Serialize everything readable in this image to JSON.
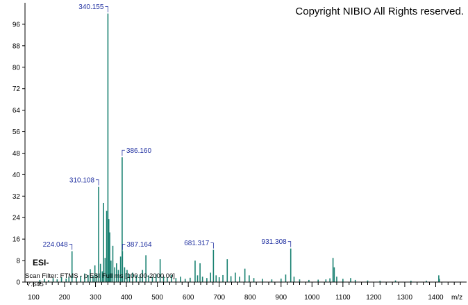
{
  "header": {
    "copyright": "Copyright NIBIO All Rights reserved."
  },
  "annotations": {
    "ionization": "ESI-",
    "scan_filter": "Scan Filter: FTMS - p ESI Full ms [100.00-2000.00]",
    "intensity_level": "7.645"
  },
  "colors": {
    "peak": "#1a8272",
    "label": "#1f2fa0",
    "axis": "#000000"
  },
  "chart_data": {
    "type": "bar",
    "xlabel": "m/z",
    "ylabel": "",
    "xlim": [
      72,
      1500
    ],
    "ylim": [
      0,
      104
    ],
    "x_ticks": [
      100,
      200,
      300,
      400,
      500,
      600,
      700,
      800,
      900,
      1000,
      1100,
      1200,
      1300,
      1400
    ],
    "y_ticks": [
      0,
      8,
      16,
      24,
      32,
      40,
      48,
      56,
      64,
      72,
      80,
      88,
      96
    ],
    "peaks": [
      {
        "mz": 120,
        "intensity": 0.8
      },
      {
        "mz": 135,
        "intensity": 1.2
      },
      {
        "mz": 148,
        "intensity": 0.7
      },
      {
        "mz": 163,
        "intensity": 1.5
      },
      {
        "mz": 176,
        "intensity": 1.0
      },
      {
        "mz": 190,
        "intensity": 1.8
      },
      {
        "mz": 205,
        "intensity": 1.3
      },
      {
        "mz": 214,
        "intensity": 2.0
      },
      {
        "mz": 224.048,
        "intensity": 11.5
      },
      {
        "mz": 238,
        "intensity": 1.6
      },
      {
        "mz": 252,
        "intensity": 2.2
      },
      {
        "mz": 265,
        "intensity": 3.2
      },
      {
        "mz": 276,
        "intensity": 2.6
      },
      {
        "mz": 283,
        "intensity": 4.8
      },
      {
        "mz": 292,
        "intensity": 2.4
      },
      {
        "mz": 298,
        "intensity": 6.2
      },
      {
        "mz": 304,
        "intensity": 3.0
      },
      {
        "mz": 310.108,
        "intensity": 35.5
      },
      {
        "mz": 316,
        "intensity": 6.8
      },
      {
        "mz": 322,
        "intensity": 4.0
      },
      {
        "mz": 326,
        "intensity": 29.5
      },
      {
        "mz": 331,
        "intensity": 9.0
      },
      {
        "mz": 336,
        "intensity": 26.5
      },
      {
        "mz": 340.155,
        "intensity": 100
      },
      {
        "mz": 343,
        "intensity": 23.5
      },
      {
        "mz": 346,
        "intensity": 18.5
      },
      {
        "mz": 350,
        "intensity": 8.0
      },
      {
        "mz": 356,
        "intensity": 13.5
      },
      {
        "mz": 362,
        "intensity": 5.5
      },
      {
        "mz": 368,
        "intensity": 7.0
      },
      {
        "mz": 374,
        "intensity": 4.5
      },
      {
        "mz": 381,
        "intensity": 9.5
      },
      {
        "mz": 386.16,
        "intensity": 46.5
      },
      {
        "mz": 387.164,
        "intensity": 11.5
      },
      {
        "mz": 394,
        "intensity": 5.5
      },
      {
        "mz": 402,
        "intensity": 4.5
      },
      {
        "mz": 410,
        "intensity": 3.0
      },
      {
        "mz": 420,
        "intensity": 3.5
      },
      {
        "mz": 432,
        "intensity": 2.5
      },
      {
        "mz": 444,
        "intensity": 2.8
      },
      {
        "mz": 452,
        "intensity": 4.5
      },
      {
        "mz": 463,
        "intensity": 10.0
      },
      {
        "mz": 472,
        "intensity": 2.5
      },
      {
        "mz": 484,
        "intensity": 2.0
      },
      {
        "mz": 496,
        "intensity": 3.0
      },
      {
        "mz": 509,
        "intensity": 8.5
      },
      {
        "mz": 520,
        "intensity": 2.2
      },
      {
        "mz": 532,
        "intensity": 1.8
      },
      {
        "mz": 546,
        "intensity": 2.6
      },
      {
        "mz": 560,
        "intensity": 1.5
      },
      {
        "mz": 575,
        "intensity": 2.0
      },
      {
        "mz": 590,
        "intensity": 1.2
      },
      {
        "mz": 606,
        "intensity": 1.6
      },
      {
        "mz": 622,
        "intensity": 8.0
      },
      {
        "mz": 630,
        "intensity": 2.5
      },
      {
        "mz": 638,
        "intensity": 7.0
      },
      {
        "mz": 646,
        "intensity": 2.0
      },
      {
        "mz": 660,
        "intensity": 1.5
      },
      {
        "mz": 672,
        "intensity": 3.5
      },
      {
        "mz": 681.317,
        "intensity": 12.0
      },
      {
        "mz": 690,
        "intensity": 2.5
      },
      {
        "mz": 700,
        "intensity": 1.8
      },
      {
        "mz": 712,
        "intensity": 2.6
      },
      {
        "mz": 726,
        "intensity": 8.5
      },
      {
        "mz": 738,
        "intensity": 2.2
      },
      {
        "mz": 752,
        "intensity": 3.5
      },
      {
        "mz": 766,
        "intensity": 2.0
      },
      {
        "mz": 783,
        "intensity": 5.0
      },
      {
        "mz": 797,
        "intensity": 2.5
      },
      {
        "mz": 812,
        "intensity": 1.5
      },
      {
        "mz": 840,
        "intensity": 1.2
      },
      {
        "mz": 870,
        "intensity": 1.0
      },
      {
        "mz": 900,
        "intensity": 1.3
      },
      {
        "mz": 915,
        "intensity": 2.8
      },
      {
        "mz": 931.308,
        "intensity": 12.5
      },
      {
        "mz": 942,
        "intensity": 2.0
      },
      {
        "mz": 960,
        "intensity": 1.0
      },
      {
        "mz": 990,
        "intensity": 0.8
      },
      {
        "mz": 1020,
        "intensity": 0.9
      },
      {
        "mz": 1045,
        "intensity": 1.0
      },
      {
        "mz": 1058,
        "intensity": 1.4
      },
      {
        "mz": 1068,
        "intensity": 9.0
      },
      {
        "mz": 1072,
        "intensity": 5.5
      },
      {
        "mz": 1080,
        "intensity": 2.0
      },
      {
        "mz": 1100,
        "intensity": 1.2
      },
      {
        "mz": 1125,
        "intensity": 1.5
      },
      {
        "mz": 1140,
        "intensity": 0.8
      },
      {
        "mz": 1180,
        "intensity": 0.6
      },
      {
        "mz": 1220,
        "intensity": 0.5
      },
      {
        "mz": 1270,
        "intensity": 0.6
      },
      {
        "mz": 1320,
        "intensity": 0.5
      },
      {
        "mz": 1370,
        "intensity": 0.5
      },
      {
        "mz": 1410,
        "intensity": 2.5
      },
      {
        "mz": 1412,
        "intensity": 1.2
      }
    ],
    "labeled_peaks": [
      {
        "label": "340.155",
        "mz": 340.155,
        "intensity": 100
      },
      {
        "label": "386.160",
        "mz": 386.16,
        "intensity": 46.5
      },
      {
        "label": "310.108",
        "mz": 310.108,
        "intensity": 35.5
      },
      {
        "label": "224.048",
        "mz": 224.048,
        "intensity": 11.5
      },
      {
        "label": "387.164",
        "mz": 387.164,
        "intensity": 11.5
      },
      {
        "label": "681.317",
        "mz": 681.317,
        "intensity": 12.0
      },
      {
        "label": "931.308",
        "mz": 931.308,
        "intensity": 12.5
      }
    ]
  }
}
